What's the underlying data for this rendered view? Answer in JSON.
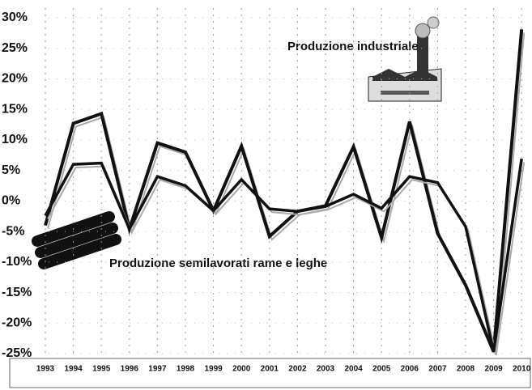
{
  "chart_data": {
    "type": "line",
    "categories": [
      "1993",
      "1994",
      "1995",
      "1996",
      "1997",
      "1998",
      "1999",
      "2000",
      "2001",
      "2002",
      "2003",
      "2004",
      "2005",
      "2006",
      "2007",
      "2008",
      "2009",
      "2010"
    ],
    "series": [
      {
        "name": "Produzione semilavorati rame e leghe",
        "color": "#111111",
        "values": [
          -4,
          12.7,
          14.3,
          -4.6,
          9.5,
          8,
          -1.6,
          9,
          -5.8,
          -1.7,
          -0.8,
          8.9,
          -6,
          13,
          -5.3,
          -13.8,
          -24.7,
          28.1
        ]
      },
      {
        "name": "Produzione industriale",
        "color": "#111111",
        "values": [
          -2.4,
          6,
          6.2,
          -4.6,
          4,
          2.5,
          -1.6,
          3.5,
          -1.3,
          -1.7,
          -0.9,
          1.1,
          -1.2,
          4,
          3,
          -4.2,
          -24.7,
          6.9
        ]
      }
    ],
    "ylim": [
      -25,
      30
    ],
    "yticks": [
      {
        "value": 30,
        "label": "30%"
      },
      {
        "value": 25,
        "label": "25%"
      },
      {
        "value": 20,
        "label": "20%"
      },
      {
        "value": 15,
        "label": "15%"
      },
      {
        "value": 10,
        "label": "10%"
      },
      {
        "value": 5,
        "label": "5%"
      },
      {
        "value": 0,
        "label": "0%"
      },
      {
        "value": -5,
        "label": "-5%"
      },
      {
        "value": -10,
        "label": "-10%"
      },
      {
        "value": -15,
        "label": "-15%"
      },
      {
        "value": -20,
        "label": "-20%"
      },
      {
        "value": -25,
        "label": "-25%"
      }
    ],
    "grid": true
  }
}
